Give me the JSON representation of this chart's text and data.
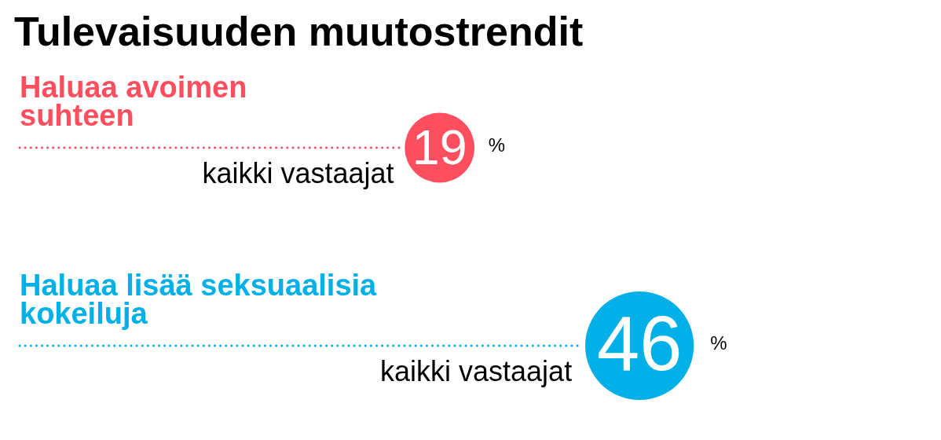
{
  "chart_data": {
    "type": "other",
    "title": "Tulevaisuuden muutostrendit",
    "categories": [
      "Haluaa avoimen suhteen",
      "Haluaa lisää seksuaalisia kokeiluja"
    ],
    "values": [
      19,
      46
    ],
    "colors": [
      "#ff4f5e",
      "#00b0e6"
    ],
    "data_labels": true,
    "annotations": [
      "kaikki vastaajat",
      "%",
      "kaikki vastaajat",
      "%"
    ]
  }
}
